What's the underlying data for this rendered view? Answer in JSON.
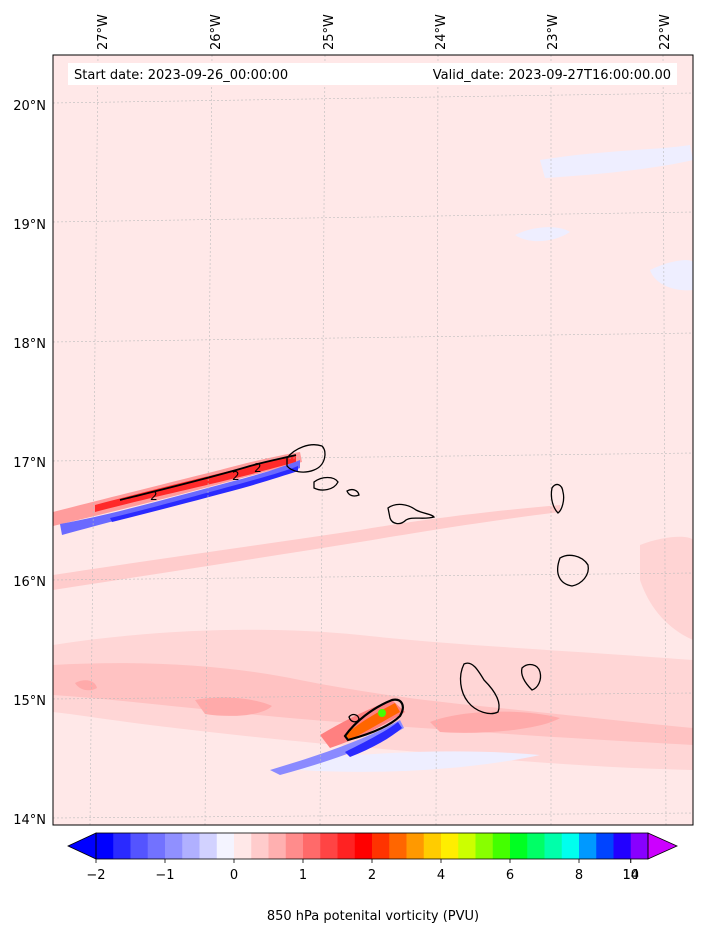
{
  "header": {
    "start_label": "Start date: 2023-09-26_00:00:00",
    "valid_label": "Valid_date: 2023-09-27T16:00:00.00"
  },
  "map": {
    "lon_ticks": [
      "27°W",
      "26°W",
      "25°W",
      "24°W",
      "23°W",
      "22°W"
    ],
    "lat_ticks": [
      "20°N",
      "19°N",
      "18°N",
      "17°N",
      "16°N",
      "15°N",
      "14°N"
    ],
    "lon_range": [
      -27.4,
      -21.8
    ],
    "lat_range": [
      14.0,
      20.35
    ],
    "gridlines": true,
    "contour_labels": [
      "2",
      "2",
      "2"
    ],
    "background_color": "#ffe8e8"
  },
  "colorbar": {
    "title": "850 hPa potenital vorticity (PVU)",
    "tick_labels": [
      "−2",
      "−1",
      "0",
      "1",
      "2",
      "4",
      "6",
      "8",
      "10",
      "14"
    ],
    "colors": [
      "#0000ff",
      "#2a2aff",
      "#5454ff",
      "#7272ff",
      "#9090ff",
      "#b0b0ff",
      "#d2d2ff",
      "#f4f4ff",
      "#ffe8e8",
      "#ffcccc",
      "#ffb0b0",
      "#ff8c8c",
      "#ff6a6a",
      "#ff4444",
      "#ff2222",
      "#ff0000",
      "#ff3300",
      "#ff6600",
      "#ff9900",
      "#ffcc00",
      "#ffee00",
      "#ccff00",
      "#88ff00",
      "#44ff00",
      "#00ff22",
      "#00ff66",
      "#00ffaa",
      "#00ffee",
      "#0099ff",
      "#0044ff",
      "#2200ff",
      "#8800ff"
    ],
    "extend": "both"
  }
}
